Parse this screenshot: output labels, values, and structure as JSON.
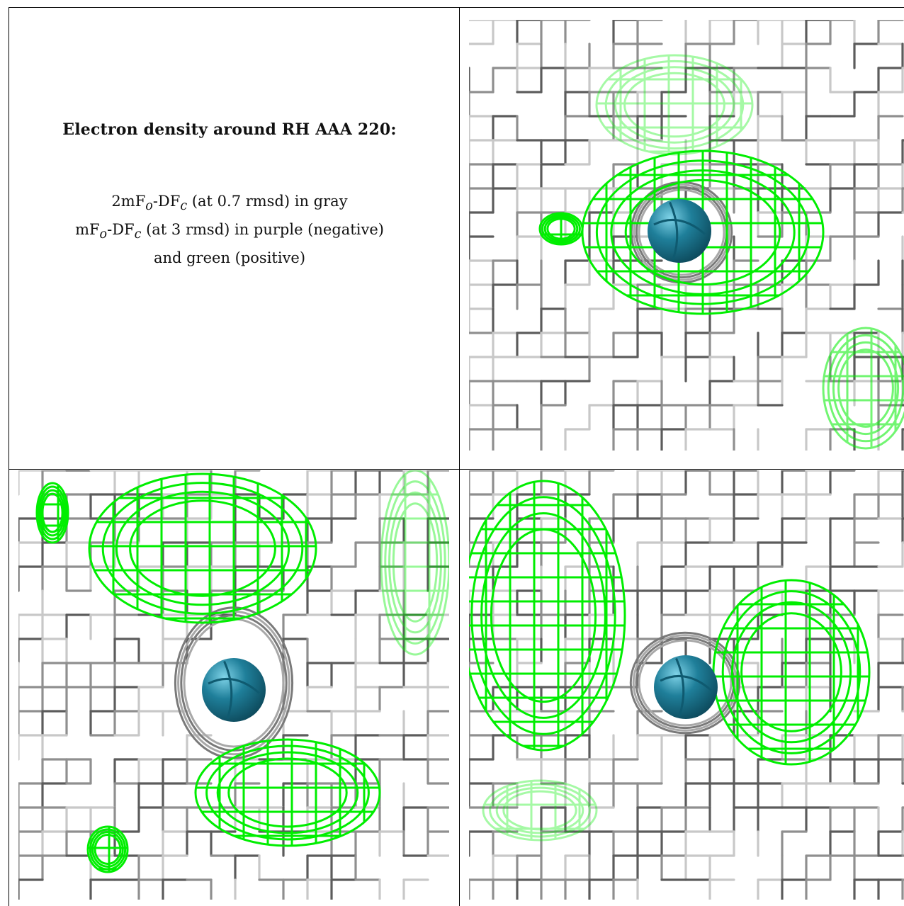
{
  "caption": {
    "title": "Electron density around RH AAA 220:",
    "line1_prefix": "2mF",
    "line1_sub1": "o",
    "line1_mid": "-DF",
    "line1_sub2": "c",
    "line1_suffix": " (at 0.7 rmsd) in gray",
    "line2_prefix": "mF",
    "line2_sub1": "o",
    "line2_mid": "-DF",
    "line2_sub2": "c",
    "line2_suffix": " (at 3 rmsd) in purple (negative)",
    "line3": "and green (positive)"
  },
  "colors": {
    "gray_mesh_dark": "#5c5c5c",
    "gray_mesh_light": "#c8c8c8",
    "green_mesh": "#00ee00",
    "atom_sphere": "#1f7f9a",
    "border": "#000000"
  },
  "panels": [
    {
      "name": "panel-top-right",
      "atom": "sphere"
    },
    {
      "name": "panel-bottom-left",
      "atom": "sphere"
    },
    {
      "name": "panel-bottom-right",
      "atom": "sphere"
    }
  ]
}
